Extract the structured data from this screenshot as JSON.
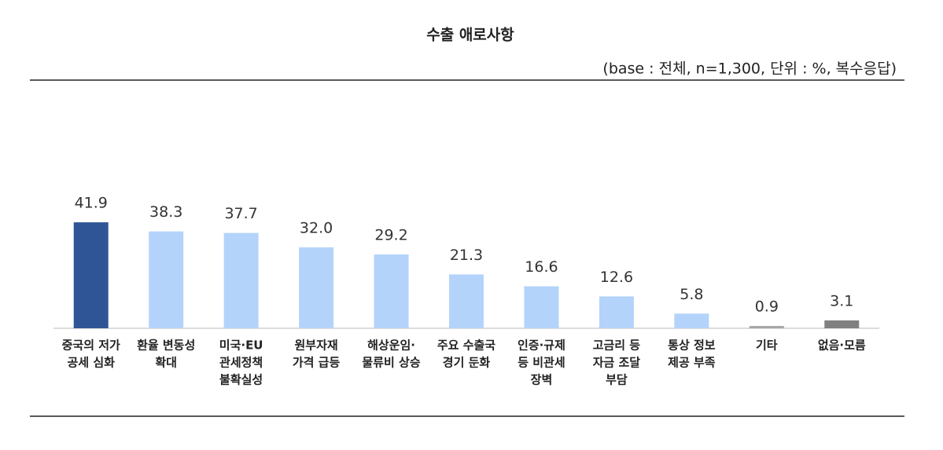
{
  "chart_data": {
    "type": "bar",
    "title": "수출 애로사항",
    "subtitle": "(base : 전체, n=1,300, 단위 : %, 복수응답)",
    "categories": [
      [
        "중국의 저가",
        "공세 심화"
      ],
      [
        "환율 변동성",
        "확대"
      ],
      [
        "미국·EU",
        "관세정책",
        "불확실성"
      ],
      [
        "원부자재",
        "가격 급등"
      ],
      [
        "해상운임·",
        "물류비 상승"
      ],
      [
        "주요 수출국",
        "경기 둔화"
      ],
      [
        "인증·규제",
        "등 비관세",
        "장벽"
      ],
      [
        "고금리 등",
        "자금 조달",
        "부담"
      ],
      [
        "통상 정보",
        "제공 부족"
      ],
      [
        "기타"
      ],
      [
        "없음·모름"
      ]
    ],
    "values": [
      41.9,
      38.3,
      37.7,
      32.0,
      29.2,
      21.3,
      16.6,
      12.6,
      5.8,
      0.9,
      3.1
    ],
    "value_labels": [
      "41.9",
      "38.3",
      "37.7",
      "32.0",
      "29.2",
      "21.3",
      "16.6",
      "12.6",
      "5.8",
      "0.9",
      "3.1"
    ],
    "colors": [
      "#2f5597",
      "#b4d3fb",
      "#b4d3fb",
      "#b4d3fb",
      "#b4d3fb",
      "#b4d3fb",
      "#b4d3fb",
      "#b4d3fb",
      "#b4d3fb",
      "#a6a6a6",
      "#808080"
    ]
  }
}
